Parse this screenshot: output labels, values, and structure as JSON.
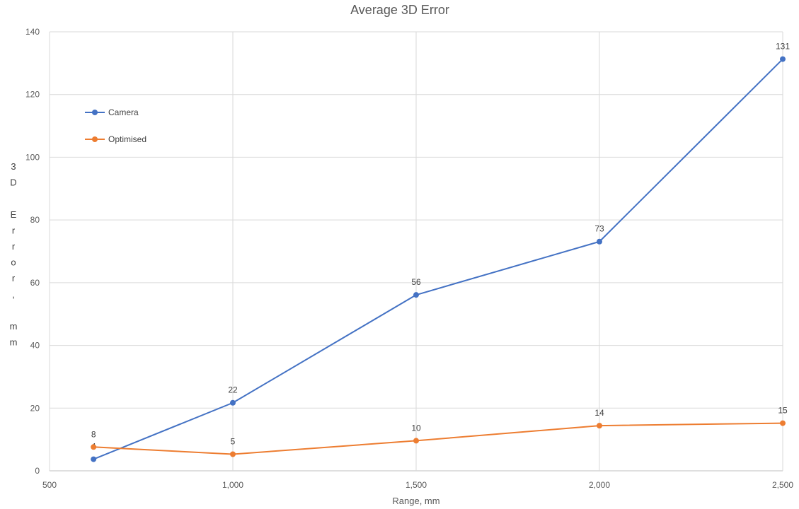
{
  "chart_data": {
    "type": "scatter",
    "title": "Average 3D Error",
    "xlabel": "Range, mm",
    "ylabel": "3D Error, mm",
    "xlim": [
      500,
      2500
    ],
    "ylim": [
      0,
      140
    ],
    "x_ticks": [
      500,
      1000,
      1500,
      2000,
      2500
    ],
    "x_tick_labels": [
      "500",
      "1,000",
      "1,500",
      "2,000",
      "2,500"
    ],
    "y_ticks": [
      0,
      20,
      40,
      60,
      80,
      100,
      120,
      140
    ],
    "y_tick_labels": [
      "0",
      "20",
      "40",
      "60",
      "80",
      "100",
      "120",
      "140"
    ],
    "grid": true,
    "legend_position": "top-left",
    "series": [
      {
        "name": "Camera",
        "color": "#4472C4",
        "x": [
          620,
          1000,
          1500,
          2000,
          2500
        ],
        "y": [
          3.7,
          21.7,
          56.1,
          73.1,
          131.3
        ],
        "labels": [
          "4",
          "22",
          "56",
          "73",
          "131"
        ]
      },
      {
        "name": "Optimised",
        "color": "#ED7D31",
        "x": [
          620,
          1000,
          1500,
          2000,
          2500
        ],
        "y": [
          7.6,
          5.3,
          9.6,
          14.4,
          15.2
        ],
        "labels": [
          "8",
          "5",
          "10",
          "14",
          "15"
        ]
      }
    ]
  }
}
